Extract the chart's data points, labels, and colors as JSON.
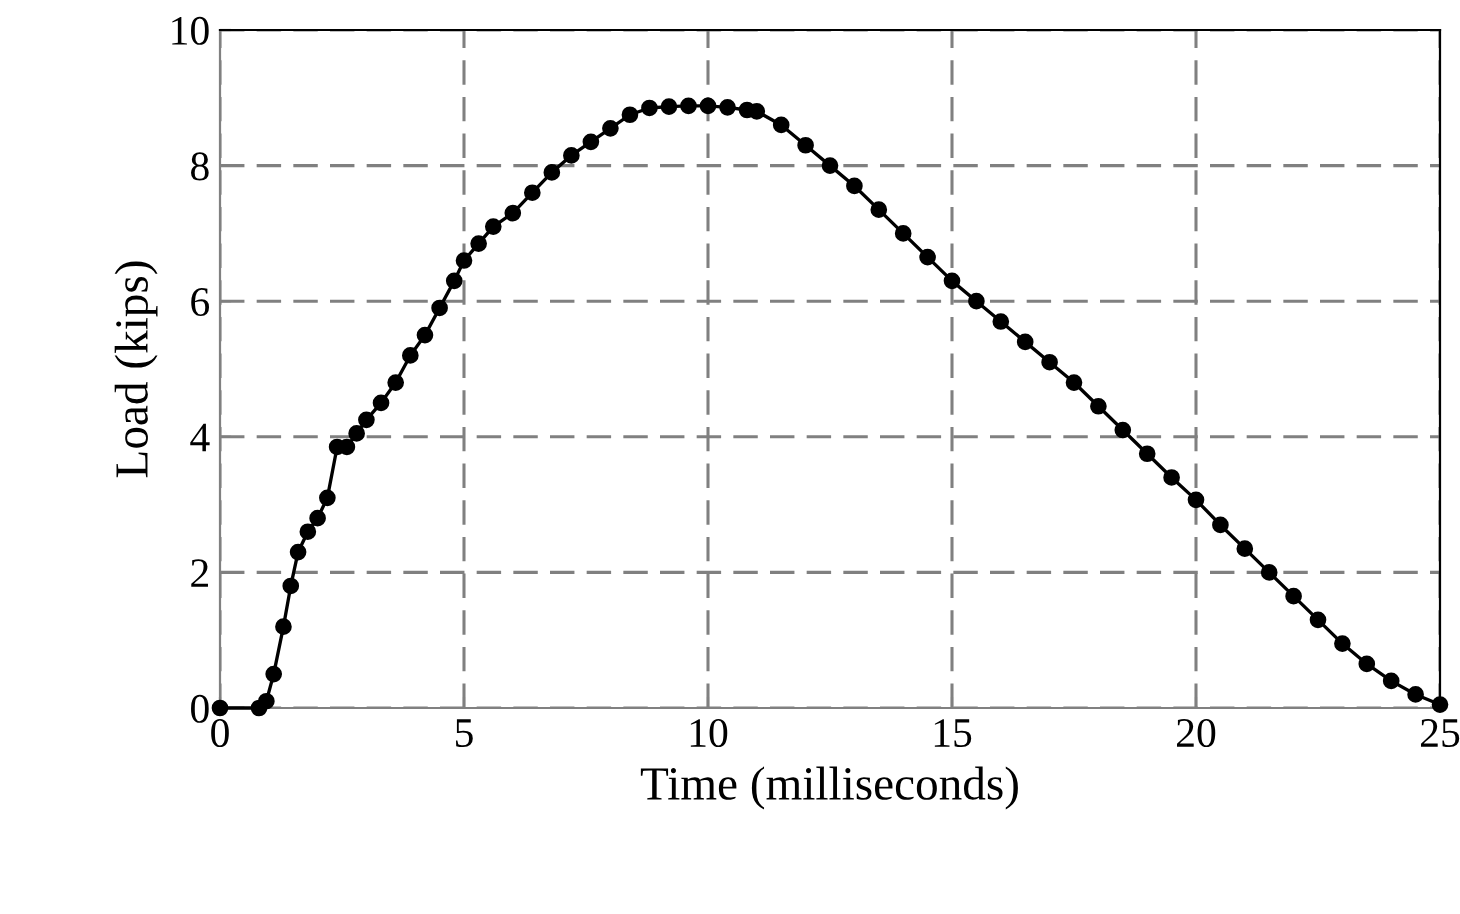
{
  "chart_data": {
    "type": "line",
    "xlabel": "Time (milliseconds)",
    "ylabel": "Load (kips)",
    "xlim": [
      0,
      25
    ],
    "ylim": [
      0,
      10
    ],
    "xticks": [
      0,
      5,
      10,
      15,
      20,
      25
    ],
    "yticks": [
      0,
      2,
      4,
      6,
      8,
      10
    ],
    "grid": true,
    "marker": "circle",
    "line_style": "solid",
    "series": [
      {
        "color": "#000000",
        "x": [
          0,
          0.8,
          0.95,
          1.1,
          1.3,
          1.45,
          1.6,
          1.8,
          2.0,
          2.2,
          2.4,
          2.6,
          2.8,
          3.0,
          3.3,
          3.6,
          3.9,
          4.2,
          4.5,
          4.8,
          5.0,
          5.3,
          5.6,
          6.0,
          6.4,
          6.8,
          7.2,
          7.6,
          8.0,
          8.4,
          8.8,
          9.2,
          9.6,
          10.0,
          10.4,
          10.8,
          11.0,
          11.5,
          12.0,
          12.5,
          13.0,
          13.5,
          14.0,
          14.5,
          15.0,
          15.5,
          16.0,
          16.5,
          17.0,
          17.5,
          18.0,
          18.5,
          19.0,
          19.5,
          20.0,
          20.5,
          21.0,
          21.5,
          22.0,
          22.5,
          23.0,
          23.5,
          24.0,
          24.5,
          25.0
        ],
        "values": [
          0,
          0,
          0.1,
          0.5,
          1.2,
          1.8,
          2.3,
          2.6,
          2.8,
          3.1,
          3.85,
          3.85,
          4.05,
          4.25,
          4.5,
          4.8,
          5.2,
          5.5,
          5.9,
          6.3,
          6.6,
          6.85,
          7.1,
          7.3,
          7.6,
          7.9,
          8.15,
          8.35,
          8.55,
          8.75,
          8.85,
          8.87,
          8.88,
          8.88,
          8.86,
          8.82,
          8.8,
          8.6,
          8.3,
          8.0,
          7.7,
          7.35,
          7.0,
          6.65,
          6.3,
          6.0,
          5.7,
          5.4,
          5.1,
          4.8,
          4.45,
          4.1,
          3.75,
          3.4,
          3.07,
          2.7,
          2.35,
          2.0,
          1.65,
          1.3,
          0.95,
          0.65,
          0.4,
          0.2,
          0.05
        ]
      }
    ]
  }
}
